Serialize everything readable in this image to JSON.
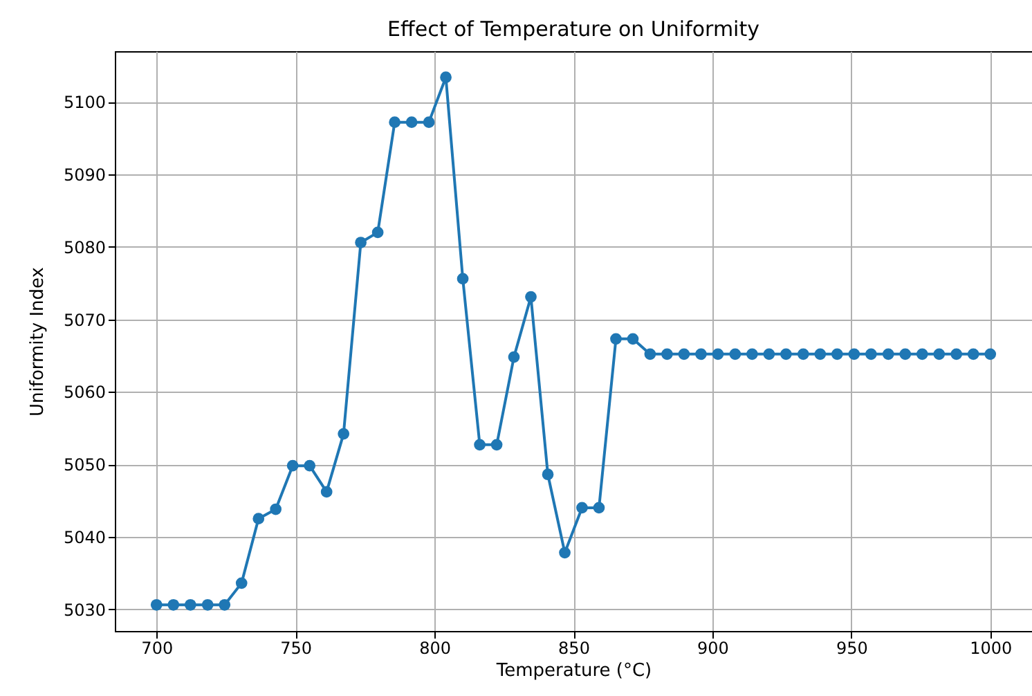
{
  "chart_data": {
    "type": "line",
    "title": "Effect of Temperature on Uniformity",
    "xlabel": "Temperature (°C)",
    "ylabel": "Uniformity Index",
    "x": [
      700,
      706.1,
      712.2,
      718.4,
      724.5,
      730.6,
      736.7,
      742.9,
      749.0,
      755.1,
      761.2,
      767.3,
      773.5,
      779.6,
      785.7,
      791.8,
      798.0,
      804.1,
      810.2,
      816.3,
      822.4,
      828.6,
      834.7,
      840.8,
      846.9,
      853.1,
      859.2,
      865.3,
      871.4,
      877.6,
      883.7,
      889.8,
      895.9,
      902.0,
      908.2,
      914.3,
      920.4,
      926.5,
      932.7,
      938.8,
      944.9,
      951.0,
      957.1,
      963.3,
      969.4,
      975.5,
      981.6,
      987.8,
      993.9,
      1000
    ],
    "series": [
      {
        "color": "#1f77b4",
        "values": [
          5030.6,
          5030.6,
          5030.6,
          5030.6,
          5030.6,
          5033.6,
          5042.5,
          5043.8,
          5049.8,
          5049.8,
          5046.2,
          5054.2,
          5080.6,
          5082.0,
          5097.2,
          5097.2,
          5097.2,
          5103.4,
          5075.6,
          5052.7,
          5052.7,
          5064.8,
          5073.1,
          5048.6,
          5037.8,
          5044.0,
          5044.0,
          5067.3,
          5067.3,
          5065.2,
          5065.2,
          5065.2,
          5065.2,
          5065.2,
          5065.2,
          5065.2,
          5065.2,
          5065.2,
          5065.2,
          5065.2,
          5065.2,
          5065.2,
          5065.2,
          5065.2,
          5065.2,
          5065.2,
          5065.2,
          5065.2,
          5065.2,
          5065.2
        ]
      }
    ],
    "xlim": [
      685,
      1015
    ],
    "ylim": [
      5027,
      5107
    ],
    "xticks": [
      700,
      750,
      800,
      850,
      900,
      950,
      1000
    ],
    "yticks": [
      5030,
      5040,
      5050,
      5060,
      5070,
      5080,
      5090,
      5100
    ],
    "grid": true,
    "marker": "circle",
    "line_style": "solid"
  }
}
